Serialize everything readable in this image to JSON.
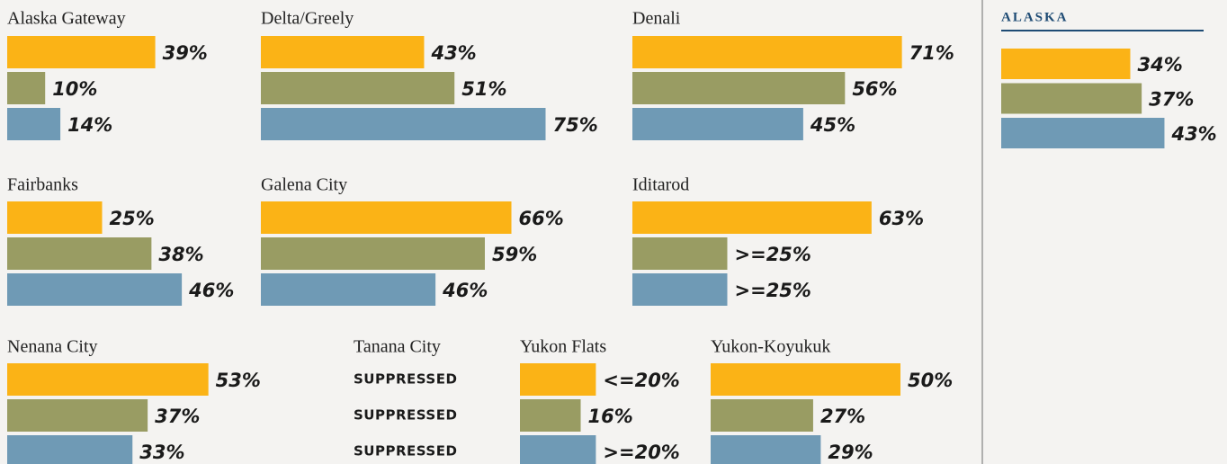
{
  "colors": [
    "#fbb316",
    "#999c63",
    "#6f9ab5"
  ],
  "chart_data": [
    {
      "type": "bar",
      "title": "Alaska Gateway",
      "values": [
        39,
        10,
        14
      ],
      "value_labels": [
        "39%",
        "10%",
        "14%"
      ]
    },
    {
      "type": "bar",
      "title": "Delta/Greely",
      "values": [
        43,
        51,
        75
      ],
      "value_labels": [
        "43%",
        "51%",
        "75%"
      ]
    },
    {
      "type": "bar",
      "title": "Denali",
      "values": [
        71,
        56,
        45
      ],
      "value_labels": [
        "71%",
        "56%",
        "45%"
      ]
    },
    {
      "type": "bar",
      "title": "Fairbanks",
      "values": [
        25,
        38,
        46
      ],
      "value_labels": [
        "25%",
        "38%",
        "46%"
      ]
    },
    {
      "type": "bar",
      "title": "Galena City",
      "values": [
        66,
        59,
        46
      ],
      "value_labels": [
        "66%",
        "59%",
        "46%"
      ]
    },
    {
      "type": "bar",
      "title": "Iditarod",
      "values": [
        63,
        25,
        25
      ],
      "value_labels": [
        "63%",
        ">=25%",
        ">=25%"
      ]
    },
    {
      "type": "bar",
      "title": "Nenana City",
      "values": [
        53,
        37,
        33
      ],
      "value_labels": [
        "53%",
        "37%",
        "33%"
      ]
    },
    {
      "type": "bar",
      "title": "Tanana City",
      "values": [
        null,
        null,
        null
      ],
      "value_labels": [
        "SUPPRESSED",
        "SUPPRESSED",
        "SUPPRESSED"
      ]
    },
    {
      "type": "bar",
      "title": "Yukon Flats",
      "values": [
        20,
        16,
        20
      ],
      "value_labels": [
        "<=20%",
        "16%",
        ">=20%"
      ]
    },
    {
      "type": "bar",
      "title": "Yukon-Koyukuk",
      "values": [
        50,
        27,
        29
      ],
      "value_labels": [
        "50%",
        "27%",
        "29%"
      ]
    },
    {
      "type": "bar",
      "title": "ALASKA",
      "values": [
        34,
        37,
        43
      ],
      "value_labels": [
        "34%",
        "37%",
        "43%"
      ]
    }
  ]
}
